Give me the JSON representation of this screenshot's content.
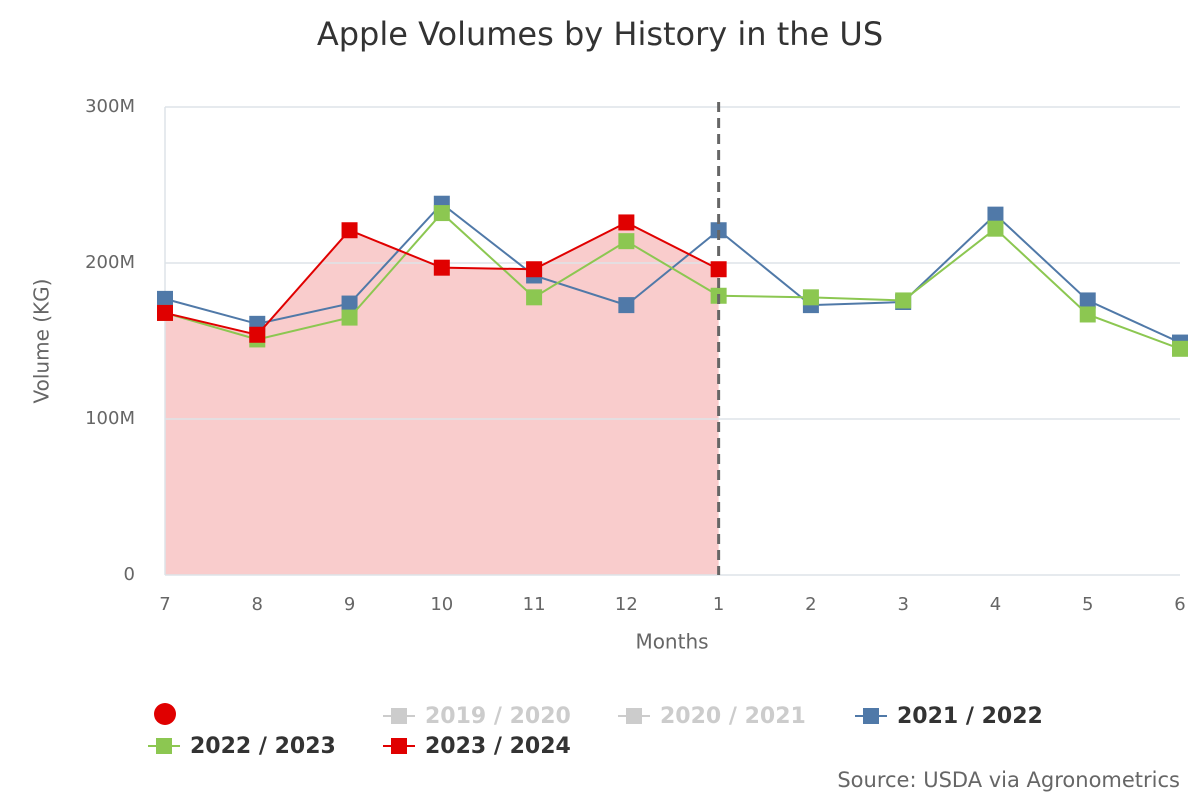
{
  "chart_data": {
    "type": "line",
    "title": "Apple Volumes by History in the US",
    "x_label": "Months",
    "y_label": "Volume (KG)",
    "source": "Source: USDA via Agronometrics",
    "categories": [
      "7",
      "8",
      "9",
      "10",
      "11",
      "12",
      "1",
      "2",
      "3",
      "4",
      "5",
      "6"
    ],
    "ylim": [
      0,
      300000000
    ],
    "yticks": [
      0,
      {
        "value": 100000000,
        "label": "100M"
      },
      {
        "value": 200000000,
        "label": "200M"
      },
      {
        "value": 300000000,
        "label": "300M"
      }
    ],
    "grid": true,
    "series": [
      {
        "name": "2019 / 2020",
        "color": "#cccccc",
        "visible": false,
        "values": [
          null,
          null,
          null,
          null,
          null,
          null,
          null,
          null,
          null,
          null,
          null,
          null
        ]
      },
      {
        "name": "2020 / 2021",
        "color": "#cccccc",
        "visible": false,
        "values": [
          null,
          null,
          null,
          null,
          null,
          null,
          null,
          null,
          null,
          null,
          null,
          null
        ]
      },
      {
        "name": "2021 / 2022",
        "color": "#5079a8",
        "visible": true,
        "values": [
          177000000,
          161000000,
          174000000,
          238000000,
          192000000,
          173000000,
          221000000,
          173000000,
          175000000,
          231000000,
          176000000,
          149000000
        ]
      },
      {
        "name": "2022 / 2023",
        "color": "#8cc751",
        "visible": true,
        "values": [
          168000000,
          151000000,
          165000000,
          232000000,
          178000000,
          214000000,
          179000000,
          178000000,
          176000000,
          222000000,
          167000000,
          145000000
        ]
      },
      {
        "name": "2023 / 2024",
        "color": "#e00000",
        "visible": true,
        "fill": true,
        "values": [
          168000000,
          154000000,
          221000000,
          197000000,
          196000000,
          226000000,
          196000000,
          null,
          null,
          null,
          null,
          null
        ]
      }
    ]
  }
}
